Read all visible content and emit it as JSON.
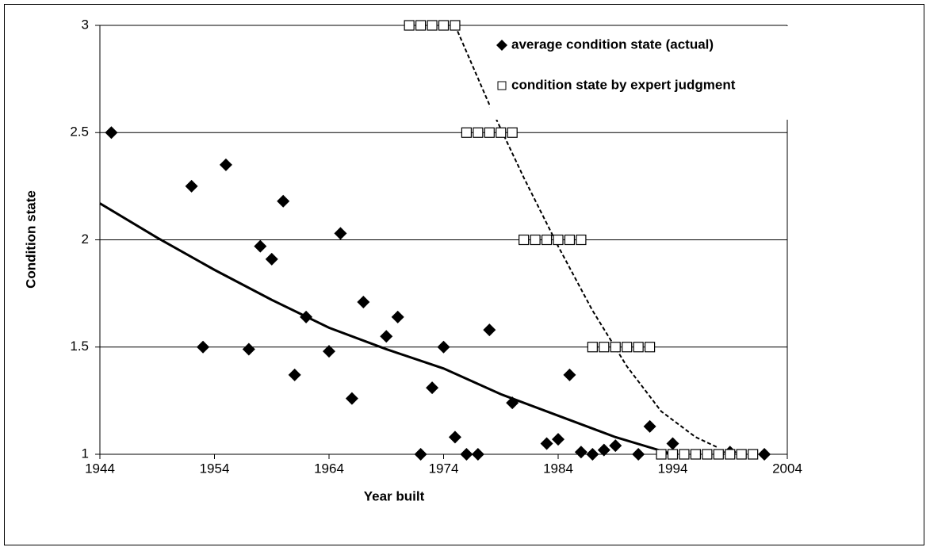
{
  "chart_data": {
    "type": "scatter",
    "xlabel": "Year built",
    "ylabel": "Condition state",
    "xlim": [
      1944,
      2004
    ],
    "xticks": [
      1944,
      1954,
      1964,
      1974,
      1984,
      1994,
      2004
    ],
    "ylim": [
      1,
      3
    ],
    "yticks": [
      1,
      1.5,
      2,
      2.5,
      3
    ],
    "grid": true,
    "legend": "upper right",
    "series": [
      {
        "name": "average condition state (actual)",
        "color": "#000000",
        "marker": "diamond",
        "x": [
          1945,
          1952,
          1953,
          1955,
          1957,
          1958,
          1959,
          1960,
          1961,
          1962,
          1964,
          1965,
          1966,
          1967,
          1969,
          1970,
          1972,
          1973,
          1974,
          1975,
          1976,
          1977,
          1978,
          1980,
          1983,
          1984,
          1985,
          1986,
          1987,
          1988,
          1989,
          1991,
          1992,
          1994,
          1999,
          2002
        ],
        "values": [
          2.5,
          2.25,
          1.5,
          2.35,
          1.49,
          1.97,
          1.91,
          2.18,
          1.37,
          1.64,
          1.48,
          2.03,
          1.26,
          1.71,
          1.55,
          1.64,
          1.0,
          1.31,
          1.5,
          1.08,
          1.0,
          1.0,
          1.58,
          1.24,
          1.05,
          1.07,
          1.37,
          1.01,
          1.0,
          1.02,
          1.04,
          1.0,
          1.13,
          1.05,
          1.01,
          1.0
        ]
      },
      {
        "name": "condition state by expert judgment",
        "color": "#000000",
        "marker": "square",
        "x": [
          1971,
          1972,
          1973,
          1974,
          1975,
          1976,
          1977,
          1978,
          1979,
          1980,
          1981,
          1982,
          1983,
          1984,
          1985,
          1986,
          1987,
          1988,
          1989,
          1990,
          1991,
          1992,
          1993,
          1994,
          1995,
          1996,
          1997,
          1998,
          1999,
          2000,
          2001
        ],
        "values": [
          3,
          3,
          3,
          3,
          3,
          2.5,
          2.5,
          2.5,
          2.5,
          2.5,
          2,
          2,
          2,
          2,
          2,
          2,
          1.5,
          1.5,
          1.5,
          1.5,
          1.5,
          1.5,
          1,
          1,
          1,
          1,
          1,
          1,
          1,
          1,
          1
        ]
      },
      {
        "color": "#000000",
        "marker": "line",
        "dash": false,
        "x": [
          1944,
          1949,
          1954,
          1959,
          1964,
          1969,
          1974,
          1979,
          1984,
          1989,
          1994
        ],
        "values": [
          2.17,
          2.01,
          1.86,
          1.72,
          1.59,
          1.49,
          1.4,
          1.28,
          1.18,
          1.08,
          1.0
        ]
      },
      {
        "color": "#000000",
        "marker": "line",
        "dash": true,
        "x": [
          1975,
          1978,
          1981,
          1984,
          1987,
          1990,
          1993,
          1996,
          1998
        ],
        "values": [
          3.0,
          2.63,
          2.29,
          1.97,
          1.67,
          1.41,
          1.2,
          1.08,
          1.03
        ]
      }
    ]
  }
}
